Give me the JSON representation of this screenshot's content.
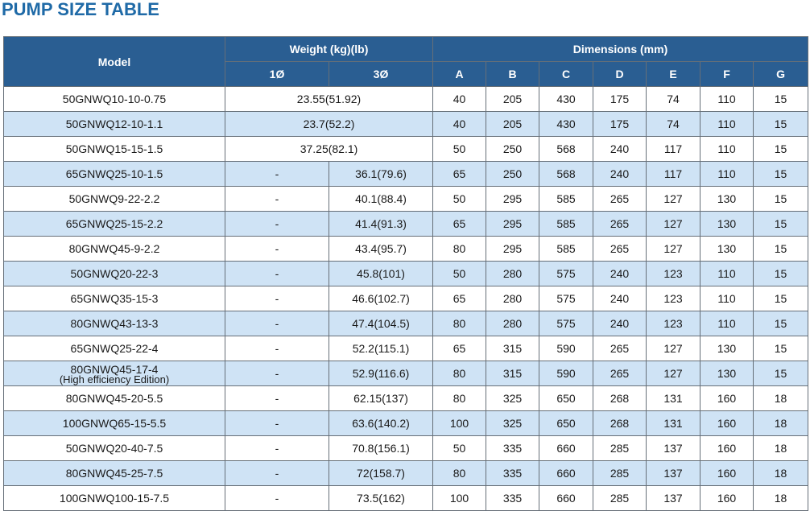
{
  "title": "PUMP SIZE TABLE",
  "header": {
    "model": "Model",
    "weight": "Weight  (kg)(lb)",
    "dimensions": "Dimensions (mm)",
    "single_phase": "1Ø",
    "three_phase": "3Ø",
    "dims": [
      "A",
      "B",
      "C",
      "D",
      "E",
      "F",
      "G"
    ]
  },
  "rows": [
    {
      "model": "50GNWQ10-10-0.75",
      "weight_merged": "23.55(51.92)",
      "dims": [
        "40",
        "205",
        "430",
        "175",
        "74",
        "110",
        "15"
      ]
    },
    {
      "model": "50GNWQ12-10-1.1",
      "weight_merged": "23.7(52.2)",
      "dims": [
        "40",
        "205",
        "430",
        "175",
        "74",
        "110",
        "15"
      ]
    },
    {
      "model": "50GNWQ15-15-1.5",
      "weight_merged": "37.25(82.1)",
      "dims": [
        "50",
        "250",
        "568",
        "240",
        "117",
        "110",
        "15"
      ]
    },
    {
      "model": "65GNWQ25-10-1.5",
      "w1": "-",
      "w3": "36.1(79.6)",
      "dims": [
        "65",
        "250",
        "568",
        "240",
        "117",
        "110",
        "15"
      ]
    },
    {
      "model": "50GNWQ9-22-2.2",
      "w1": "-",
      "w3": "40.1(88.4)",
      "dims": [
        "50",
        "295",
        "585",
        "265",
        "127",
        "130",
        "15"
      ]
    },
    {
      "model": "65GNWQ25-15-2.2",
      "w1": "-",
      "w3": "41.4(91.3)",
      "dims": [
        "65",
        "295",
        "585",
        "265",
        "127",
        "130",
        "15"
      ]
    },
    {
      "model": "80GNWQ45-9-2.2",
      "w1": "-",
      "w3": "43.4(95.7)",
      "dims": [
        "80",
        "295",
        "585",
        "265",
        "127",
        "130",
        "15"
      ]
    },
    {
      "model": "50GNWQ20-22-3",
      "w1": "-",
      "w3": "45.8(101)",
      "dims": [
        "50",
        "280",
        "575",
        "240",
        "123",
        "110",
        "15"
      ]
    },
    {
      "model": "65GNWQ35-15-3",
      "w1": "-",
      "w3": "46.6(102.7)",
      "dims": [
        "65",
        "280",
        "575",
        "240",
        "123",
        "110",
        "15"
      ]
    },
    {
      "model": "80GNWQ43-13-3",
      "w1": "-",
      "w3": "47.4(104.5)",
      "dims": [
        "80",
        "280",
        "575",
        "240",
        "123",
        "110",
        "15"
      ]
    },
    {
      "model": "65GNWQ25-22-4",
      "w1": "-",
      "w3": "52.2(115.1)",
      "dims": [
        "65",
        "315",
        "590",
        "265",
        "127",
        "130",
        "15"
      ]
    },
    {
      "model": "80GNWQ45-17-4",
      "model_note": "(High efficiency Edition)",
      "w1": "-",
      "w3": "52.9(116.6)",
      "dims": [
        "80",
        "315",
        "590",
        "265",
        "127",
        "130",
        "15"
      ]
    },
    {
      "model": "80GNWQ45-20-5.5",
      "w1": "-",
      "w3": "62.15(137)",
      "dims": [
        "80",
        "325",
        "650",
        "268",
        "131",
        "160",
        "18"
      ]
    },
    {
      "model": "100GNWQ65-15-5.5",
      "w1": "-",
      "w3": "63.6(140.2)",
      "dims": [
        "100",
        "325",
        "650",
        "268",
        "131",
        "160",
        "18"
      ]
    },
    {
      "model": "50GNWQ20-40-7.5",
      "w1": "-",
      "w3": "70.8(156.1)",
      "dims": [
        "50",
        "335",
        "660",
        "285",
        "137",
        "160",
        "18"
      ]
    },
    {
      "model": "80GNWQ45-25-7.5",
      "w1": "-",
      "w3": "72(158.7)",
      "dims": [
        "80",
        "335",
        "660",
        "285",
        "137",
        "160",
        "18"
      ]
    },
    {
      "model": "100GNWQ100-15-7.5",
      "w1": "-",
      "w3": "73.5(162)",
      "dims": [
        "100",
        "335",
        "660",
        "285",
        "137",
        "160",
        "18"
      ]
    }
  ],
  "colors": {
    "title": "#1f6aa7",
    "header_bg": "#2a5e92",
    "row_alt_bg": "#cfe3f5",
    "row_bg": "#ffffff"
  }
}
